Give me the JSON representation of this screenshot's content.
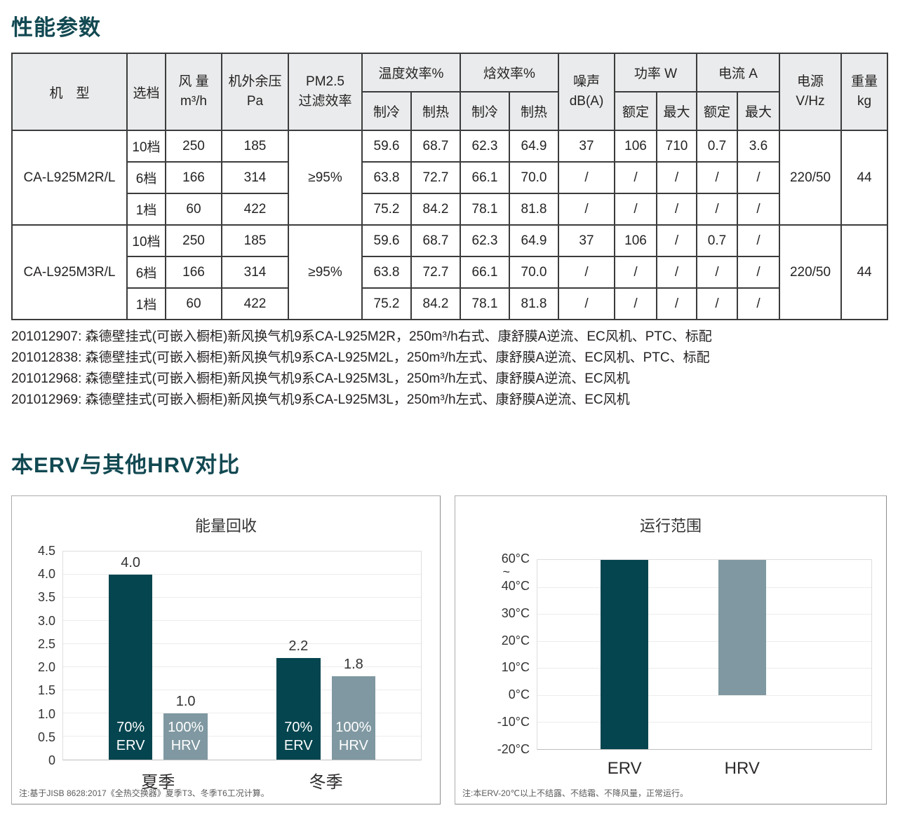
{
  "page": {
    "section1_title": "性能参数",
    "section2_title": "本ERV与其他HRV对比"
  },
  "table": {
    "header": {
      "model": "机　型",
      "gear": "选档",
      "airflow": [
        "风 量",
        "m³/h"
      ],
      "esp": [
        "机外余压",
        "Pa"
      ],
      "pm25": [
        "PM2.5",
        "过滤效率"
      ],
      "temp_eff": "温度效率%",
      "enthalpy_eff": "焓效率%",
      "noise": [
        "噪声",
        "dB(A)"
      ],
      "power": "功率 W",
      "current": "电流 A",
      "supply": [
        "电源",
        "V/Hz"
      ],
      "weight": [
        "重量",
        "kg"
      ],
      "cooling": "制冷",
      "heating": "制热",
      "rated": "额定",
      "max": "最大"
    },
    "groups": [
      {
        "model": "CA-L925M2R/L",
        "pm25": "≥95%",
        "supply": "220/50",
        "weight": "44",
        "rows": [
          {
            "gear": "10档",
            "airflow": "250",
            "esp": "185",
            "temp_cool": "59.6",
            "temp_heat": "68.7",
            "enth_cool": "62.3",
            "enth_heat": "64.9",
            "noise": "37",
            "power_rated": "106",
            "power_max": "710",
            "current_rated": "0.7",
            "current_max": "3.6"
          },
          {
            "gear": "6档",
            "airflow": "166",
            "esp": "314",
            "temp_cool": "63.8",
            "temp_heat": "72.7",
            "enth_cool": "66.1",
            "enth_heat": "70.0",
            "noise": "/",
            "power_rated": "/",
            "power_max": "/",
            "current_rated": "/",
            "current_max": "/"
          },
          {
            "gear": "1档",
            "airflow": "60",
            "esp": "422",
            "temp_cool": "75.2",
            "temp_heat": "84.2",
            "enth_cool": "78.1",
            "enth_heat": "81.8",
            "noise": "/",
            "power_rated": "/",
            "power_max": "/",
            "current_rated": "/",
            "current_max": "/"
          }
        ]
      },
      {
        "model": "CA-L925M3R/L",
        "pm25": "≥95%",
        "supply": "220/50",
        "weight": "44",
        "rows": [
          {
            "gear": "10档",
            "airflow": "250",
            "esp": "185",
            "temp_cool": "59.6",
            "temp_heat": "68.7",
            "enth_cool": "62.3",
            "enth_heat": "64.9",
            "noise": "37",
            "power_rated": "106",
            "power_max": "/",
            "current_rated": "0.7",
            "current_max": "/"
          },
          {
            "gear": "6档",
            "airflow": "166",
            "esp": "314",
            "temp_cool": "63.8",
            "temp_heat": "72.7",
            "enth_cool": "66.1",
            "enth_heat": "70.0",
            "noise": "/",
            "power_rated": "/",
            "power_max": "/",
            "current_rated": "/",
            "current_max": "/"
          },
          {
            "gear": "1档",
            "airflow": "60",
            "esp": "422",
            "temp_cool": "75.2",
            "temp_heat": "84.2",
            "enth_cool": "78.1",
            "enth_heat": "81.8",
            "noise": "/",
            "power_rated": "/",
            "power_max": "/",
            "current_rated": "/",
            "current_max": "/"
          }
        ]
      }
    ]
  },
  "products": [
    "201012907: 森德壁挂式(可嵌入橱柜)新风换气机9系CA-L925M2R，250m³/h右式、康舒膜A逆流、EC风机、PTC、标配",
    "201012838: 森德壁挂式(可嵌入橱柜)新风换气机9系CA-L925M2L，250m³/h左式、康舒膜A逆流、EC风机、PTC、标配",
    "201012968: 森德壁挂式(可嵌入橱柜)新风换气机9系CA-L925M3L，250m³/h左式、康舒膜A逆流、EC风机",
    "201012969: 森德壁挂式(可嵌入橱柜)新风换气机9系CA-L925M3L，250m³/h左式、康舒膜A逆流、EC风机"
  ],
  "colors": {
    "heading": "#124952",
    "erv_bar": "#04454f",
    "hrv_bar": "#7f98a1"
  },
  "chart_data": [
    {
      "type": "bar",
      "title": "能量回收",
      "categories": [
        "夏季",
        "冬季"
      ],
      "series": [
        {
          "name": "ERV",
          "color": "#04454f",
          "values": [
            4.0,
            2.2
          ],
          "value_labels": [
            "4.0",
            "2.2"
          ],
          "inner_label": "70%\nERV"
        },
        {
          "name": "HRV",
          "color": "#7f98a1",
          "values": [
            1.0,
            1.8
          ],
          "value_labels": [
            "1.0",
            "1.8"
          ],
          "inner_label": "100%\nHRV"
        }
      ],
      "ylim": [
        0,
        4.5
      ],
      "ytick_labels": [
        "0",
        "0.5",
        "1.0",
        "1.5",
        "2.0",
        "2.5",
        "3.0",
        "3.5",
        "4.0",
        "4.5"
      ],
      "grid": true,
      "legend_position": "none",
      "note": "注:基于JISB 8628:2017《全热交换器》夏季T3、冬季T6工况计算。"
    },
    {
      "type": "range-bar",
      "title": "运行范围",
      "categories": [
        "ERV",
        "HRV"
      ],
      "bars": [
        {
          "label": "ERV",
          "from_c": -20,
          "to_c": 60,
          "color": "#04454f"
        },
        {
          "label": "HRV",
          "from_c": 0,
          "to_c": 60,
          "color": "#7f98a1"
        }
      ],
      "ytick_labels": [
        "60°C",
        "~",
        "40°C",
        "30°C",
        "20°C",
        "10°C",
        "0°C",
        "-10°C",
        "-20°C"
      ],
      "axis_break": "between 60°C and 40°C",
      "grid": true,
      "legend_position": "none",
      "note": "注:本ERV-20℃以上不结露、不结霜、不降风量，正常运行。"
    }
  ]
}
